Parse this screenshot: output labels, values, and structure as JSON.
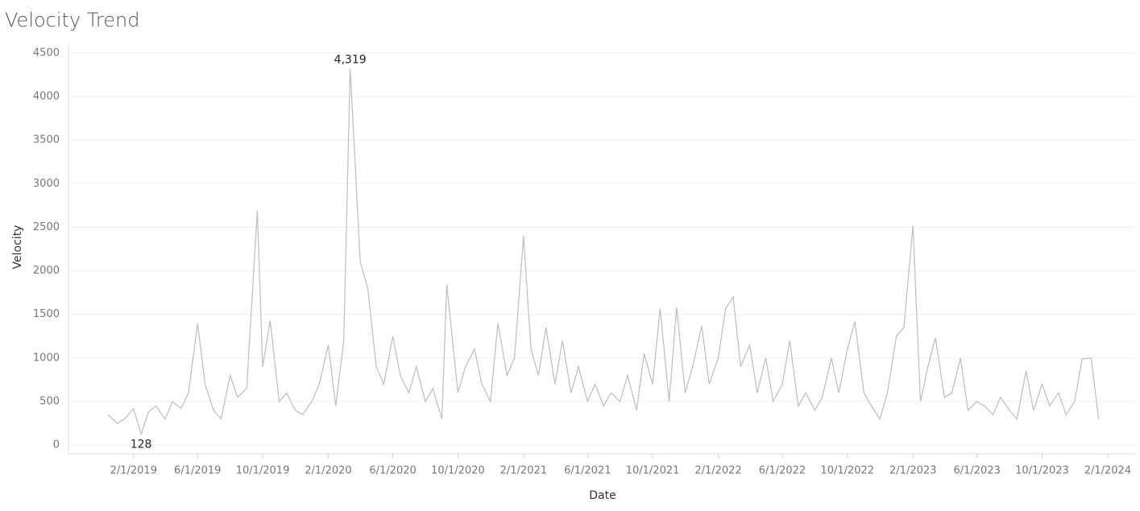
{
  "chart_data": {
    "type": "line",
    "title": "Velocity Trend",
    "x_label": "Date",
    "y_label": "Velocity",
    "xlim": [
      "10/2/2018",
      "3/25/2024"
    ],
    "xticks": [
      "2/1/2019",
      "6/1/2019",
      "10/1/2019",
      "2/1/2020",
      "6/1/2020",
      "10/1/2020",
      "2/1/2021",
      "6/1/2021",
      "10/1/2021",
      "2/1/2022",
      "6/1/2022",
      "10/1/2022",
      "2/1/2023",
      "6/1/2023",
      "10/1/2023",
      "2/1/2024"
    ],
    "ylim": [
      -100,
      4600
    ],
    "yticks": [
      0,
      500,
      1000,
      1500,
      2000,
      2500,
      3000,
      3500,
      4000,
      4500
    ],
    "grid": true,
    "x": [
      "12/15/2018",
      "1/1/2019",
      "1/15/2019",
      "2/1/2019",
      "2/15/2019",
      "3/1/2019",
      "3/15/2019",
      "4/1/2019",
      "4/15/2019",
      "5/1/2019",
      "5/15/2019",
      "6/1/2019",
      "6/15/2019",
      "7/1/2019",
      "7/15/2019",
      "8/1/2019",
      "8/15/2019",
      "9/1/2019",
      "9/21/2019",
      "10/1/2019",
      "10/15/2019",
      "11/1/2019",
      "11/15/2019",
      "12/1/2019",
      "12/15/2019",
      "1/1/2020",
      "1/15/2020",
      "2/1/2020",
      "2/15/2020",
      "3/1/2020",
      "3/13/2020",
      "4/1/2020",
      "4/15/2020",
      "5/1/2020",
      "5/15/2020",
      "6/1/2020",
      "6/15/2020",
      "7/1/2020",
      "7/15/2020",
      "8/1/2020",
      "8/15/2020",
      "9/1/2020",
      "9/10/2020",
      "10/1/2020",
      "10/15/2020",
      "11/1/2020",
      "11/15/2020",
      "12/1/2020",
      "12/15/2020",
      "1/1/2021",
      "1/15/2021",
      "2/1/2021",
      "2/15/2021",
      "3/1/2021",
      "3/15/2021",
      "4/1/2021",
      "4/15/2021",
      "5/1/2021",
      "5/15/2021",
      "6/1/2021",
      "6/15/2021",
      "7/1/2021",
      "7/15/2021",
      "8/1/2021",
      "8/15/2021",
      "9/1/2021",
      "9/15/2021",
      "10/1/2021",
      "10/15/2021",
      "11/1/2021",
      "11/15/2021",
      "12/1/2021",
      "12/15/2021",
      "1/1/2022",
      "1/15/2022",
      "2/1/2022",
      "2/15/2022",
      "3/1/2022",
      "3/15/2022",
      "4/1/2022",
      "4/15/2022",
      "5/1/2022",
      "5/15/2022",
      "6/1/2022",
      "6/15/2022",
      "7/1/2022",
      "7/15/2022",
      "8/1/2022",
      "8/15/2022",
      "9/1/2022",
      "9/15/2022",
      "10/1/2022",
      "10/15/2022",
      "11/1/2022",
      "11/15/2022",
      "12/1/2022",
      "12/15/2022",
      "1/1/2023",
      "1/15/2023",
      "2/1/2023",
      "2/15/2023",
      "3/1/2023",
      "3/15/2023",
      "4/1/2023",
      "4/15/2023",
      "5/1/2023",
      "5/15/2023",
      "6/1/2023",
      "6/15/2023",
      "7/1/2023",
      "7/15/2023",
      "8/1/2023",
      "8/15/2023",
      "9/1/2023",
      "9/15/2023",
      "10/1/2023",
      "10/15/2023",
      "11/1/2023",
      "11/15/2023",
      "12/1/2023",
      "12/15/2023",
      "1/1/2024",
      "1/15/2024"
    ],
    "values": [
      350,
      250,
      300,
      420,
      128,
      380,
      450,
      300,
      500,
      420,
      600,
      1400,
      700,
      400,
      300,
      800,
      550,
      650,
      2690,
      900,
      1430,
      500,
      600,
      400,
      350,
      500,
      700,
      1150,
      450,
      1200,
      4319,
      2100,
      1800,
      900,
      700,
      1250,
      800,
      600,
      900,
      500,
      650,
      300,
      1840,
      600,
      900,
      1100,
      700,
      500,
      1400,
      800,
      1000,
      2400,
      1100,
      800,
      1350,
      700,
      1200,
      600,
      900,
      500,
      700,
      450,
      600,
      500,
      800,
      400,
      1050,
      700,
      1570,
      500,
      1580,
      600,
      900,
      1370,
      700,
      1000,
      1570,
      1700,
      900,
      1150,
      600,
      1000,
      500,
      700,
      1200,
      450,
      600,
      400,
      550,
      1000,
      600,
      1100,
      1420,
      600,
      450,
      300,
      600,
      1250,
      1350,
      2520,
      500,
      900,
      1230,
      550,
      600,
      1000,
      400,
      500,
      450,
      350,
      550,
      400,
      300,
      850,
      400,
      700,
      450,
      600,
      350,
      500,
      990,
      1000,
      300
    ],
    "value_labels": [
      null,
      null,
      null,
      null,
      "128",
      null,
      null,
      null,
      null,
      null,
      null,
      null,
      null,
      null,
      null,
      null,
      null,
      null,
      null,
      null,
      null,
      null,
      null,
      null,
      null,
      null,
      null,
      null,
      null,
      null,
      "4,319",
      null,
      null,
      null,
      null,
      null,
      null,
      null,
      null,
      null,
      null,
      null,
      null,
      null,
      null,
      null,
      null,
      null,
      null,
      null,
      null,
      null,
      null,
      null,
      null,
      null,
      null,
      null,
      null,
      null,
      null,
      null,
      null,
      null,
      null,
      null,
      null,
      null,
      null,
      null,
      null,
      null,
      null,
      null,
      null,
      null,
      null,
      null,
      null,
      null,
      null,
      null,
      null,
      null,
      null,
      null,
      null,
      null,
      null,
      null,
      null,
      null,
      null,
      null,
      null,
      null,
      null,
      null,
      null,
      null,
      null,
      null,
      null,
      null,
      null,
      null,
      null,
      null,
      null,
      null,
      null,
      null,
      null,
      null,
      null,
      null,
      null,
      null,
      null,
      null,
      null,
      null,
      null
    ],
    "color": "#bdbdbd"
  }
}
